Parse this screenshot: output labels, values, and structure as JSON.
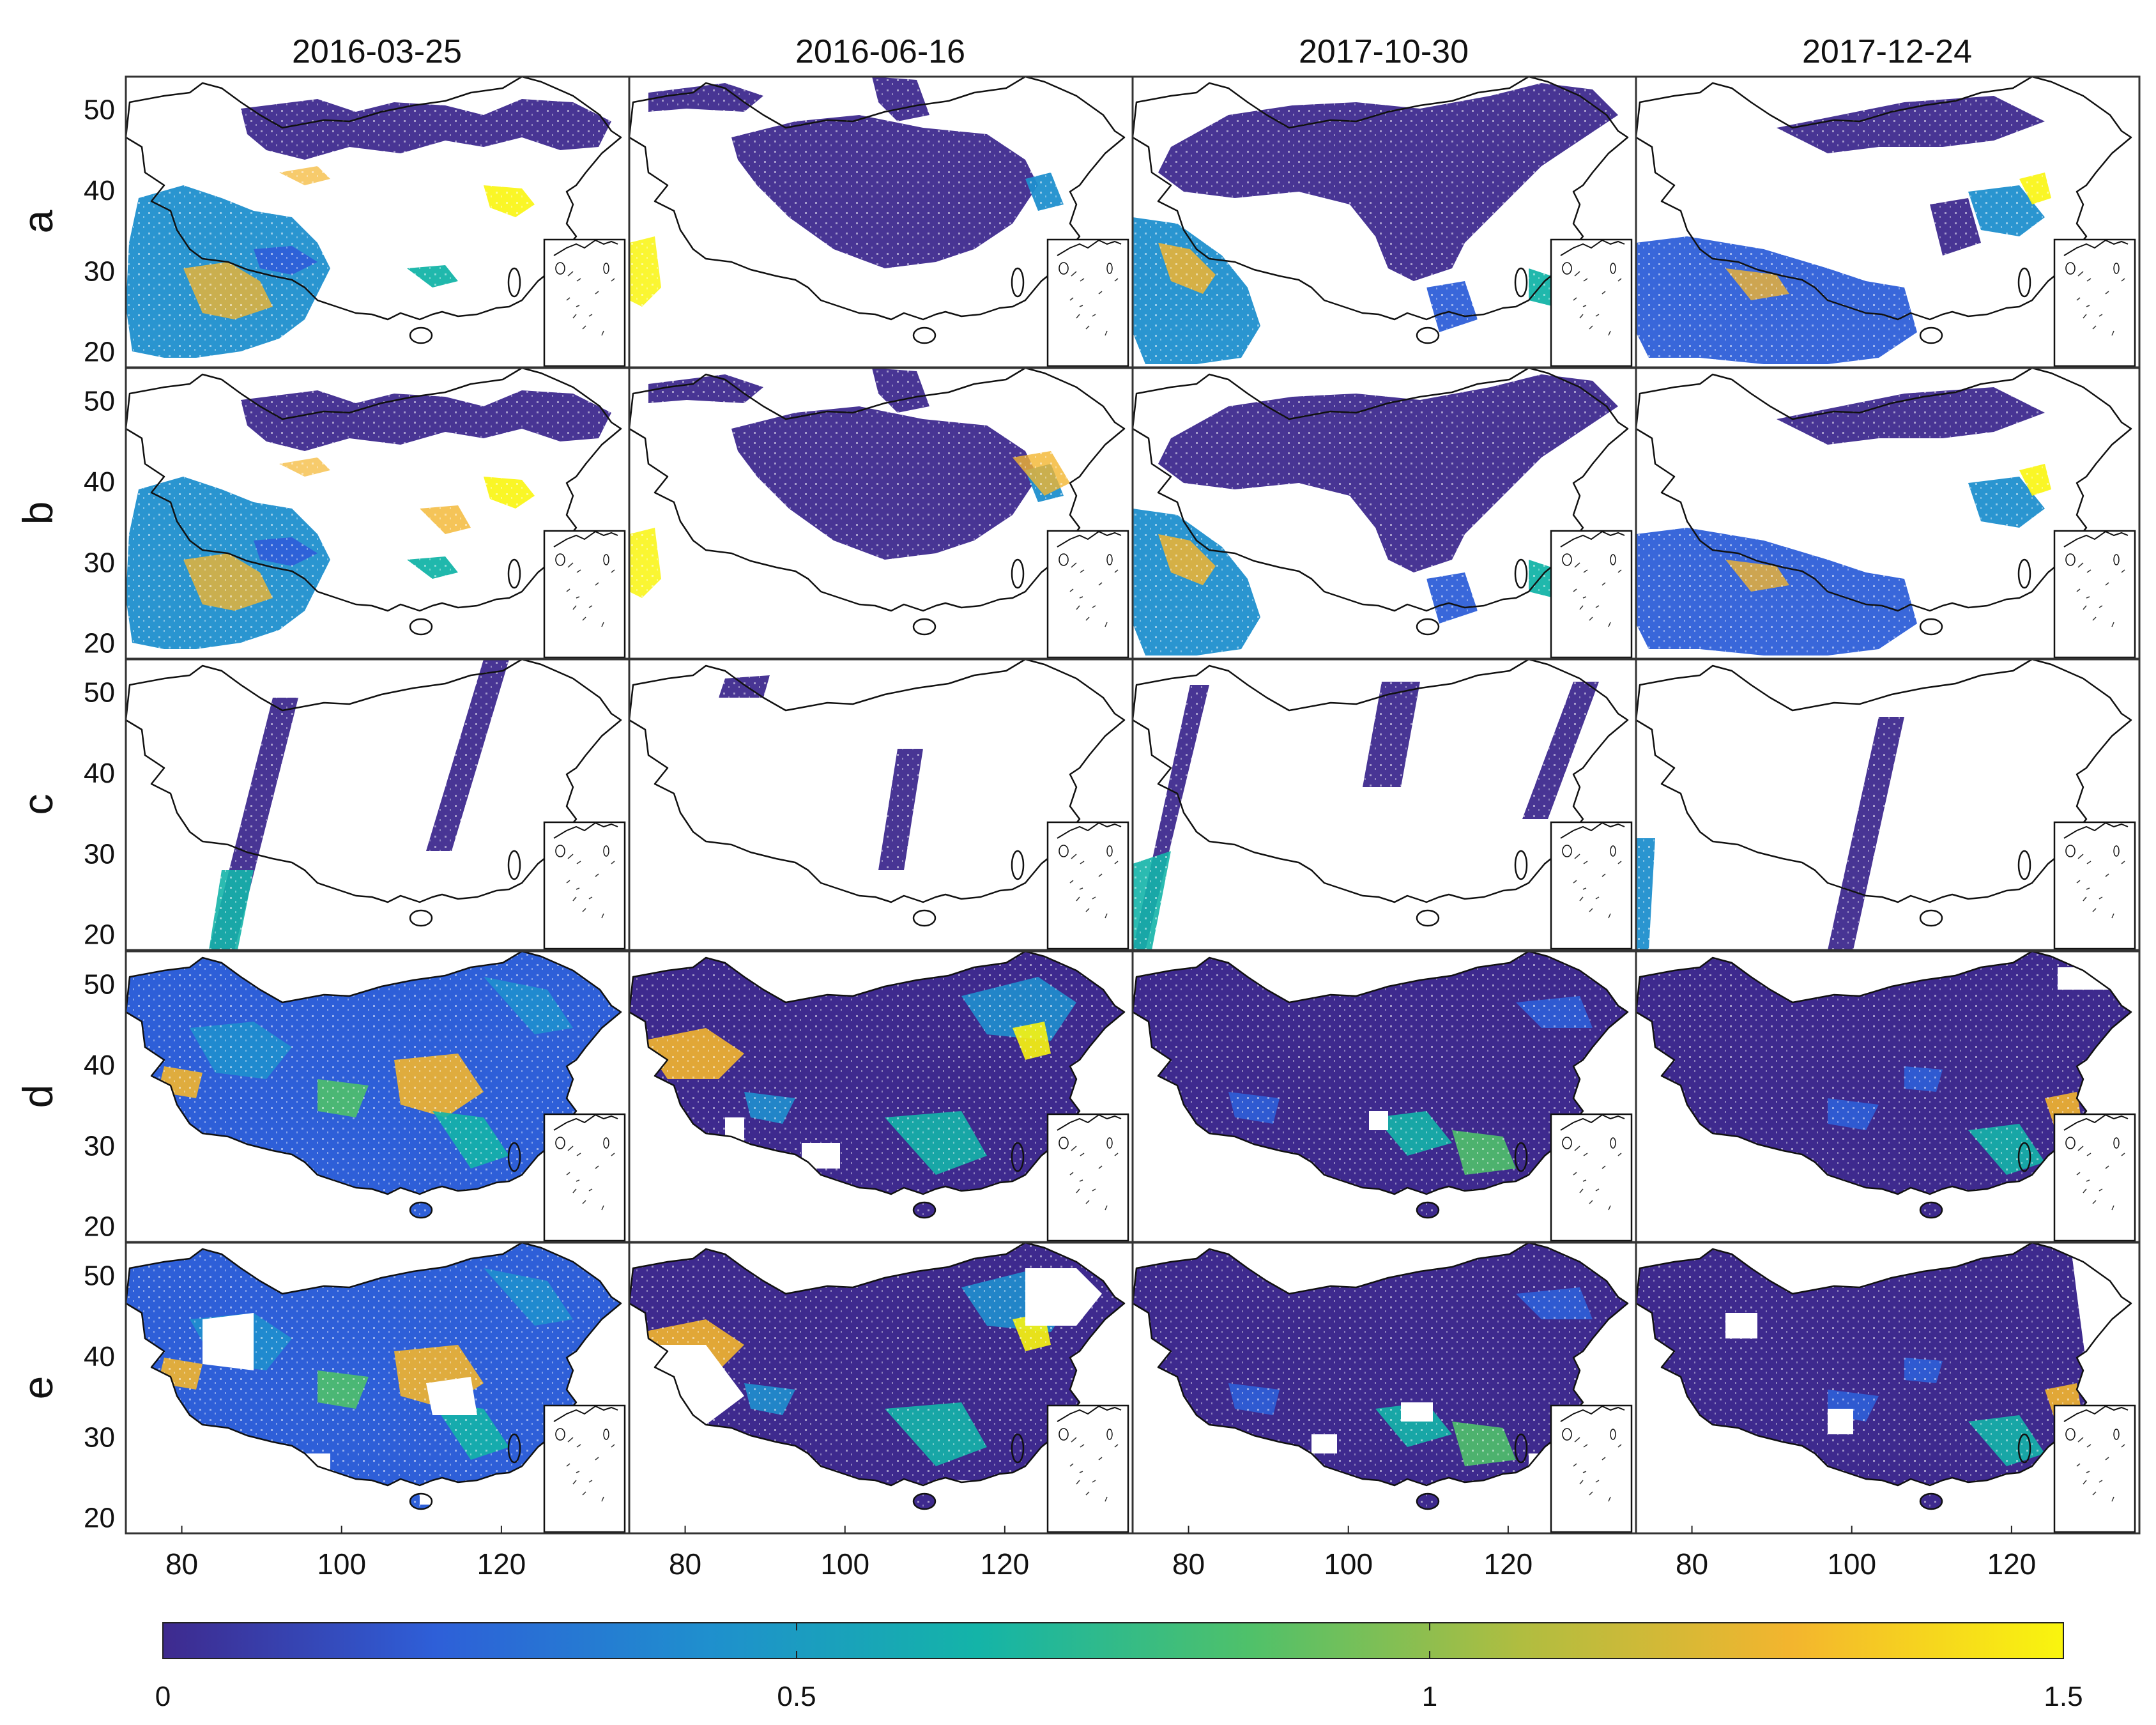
{
  "figure": {
    "columns": [
      "2016-03-25",
      "2016-06-16",
      "2017-10-30",
      "2017-12-24"
    ],
    "rows": [
      "a",
      "b",
      "c",
      "d",
      "e"
    ],
    "y_ticks": [
      "20",
      "30",
      "40",
      "50"
    ],
    "x_ticks": [
      "80",
      "100",
      "120"
    ],
    "colorbar": {
      "ticks": [
        "0",
        "0.5",
        "1",
        "1.5"
      ],
      "min": 0,
      "max": 1.5,
      "colors": [
        "#3e2a8e",
        "#2e5fd8",
        "#1f8fce",
        "#14b4a8",
        "#4fc16a",
        "#b0bd40",
        "#f3b52e",
        "#f9f50e"
      ]
    }
  }
}
